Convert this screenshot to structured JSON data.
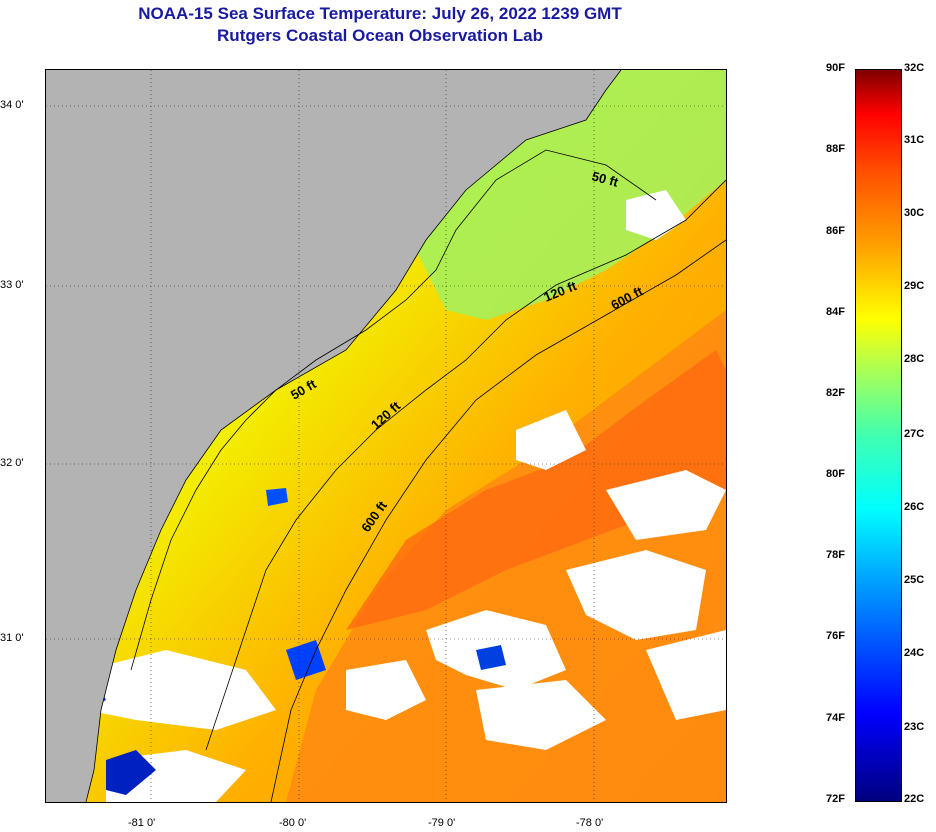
{
  "title": "NOAA-15 Sea Surface Temperature:  July 26, 2022 1239 GMT",
  "subtitle": "Rutgers Coastal Ocean Observation Lab",
  "map": {
    "lat_ticks": [
      "34 0'",
      "33 0'",
      "32 0'",
      "31 0'"
    ],
    "lon_ticks": [
      "-81 0'",
      "-80 0'",
      "-79 0'",
      "-78 0'"
    ],
    "contours": [
      "50 ft",
      "120 ft",
      "600 ft",
      "50 ft",
      "120 ft",
      "600 ft"
    ],
    "land_color": "#b3b3b3",
    "cloud_color": "#ffffff",
    "grid": true
  },
  "colorbar": {
    "fahrenheit": [
      "90F",
      "88F",
      "86F",
      "84F",
      "82F",
      "80F",
      "78F",
      "76F",
      "74F",
      "72F"
    ],
    "celsius": [
      "32C",
      "31C",
      "30C",
      "29C",
      "28C",
      "27C",
      "26C",
      "25C",
      "24C",
      "23C",
      "22C"
    ],
    "colors": [
      "#000080",
      "#0000ff",
      "#00a0ff",
      "#00ffff",
      "#40ffb0",
      "#a0ff60",
      "#ffff00",
      "#ffa000",
      "#ff5000",
      "#ff0000",
      "#800000"
    ]
  }
}
